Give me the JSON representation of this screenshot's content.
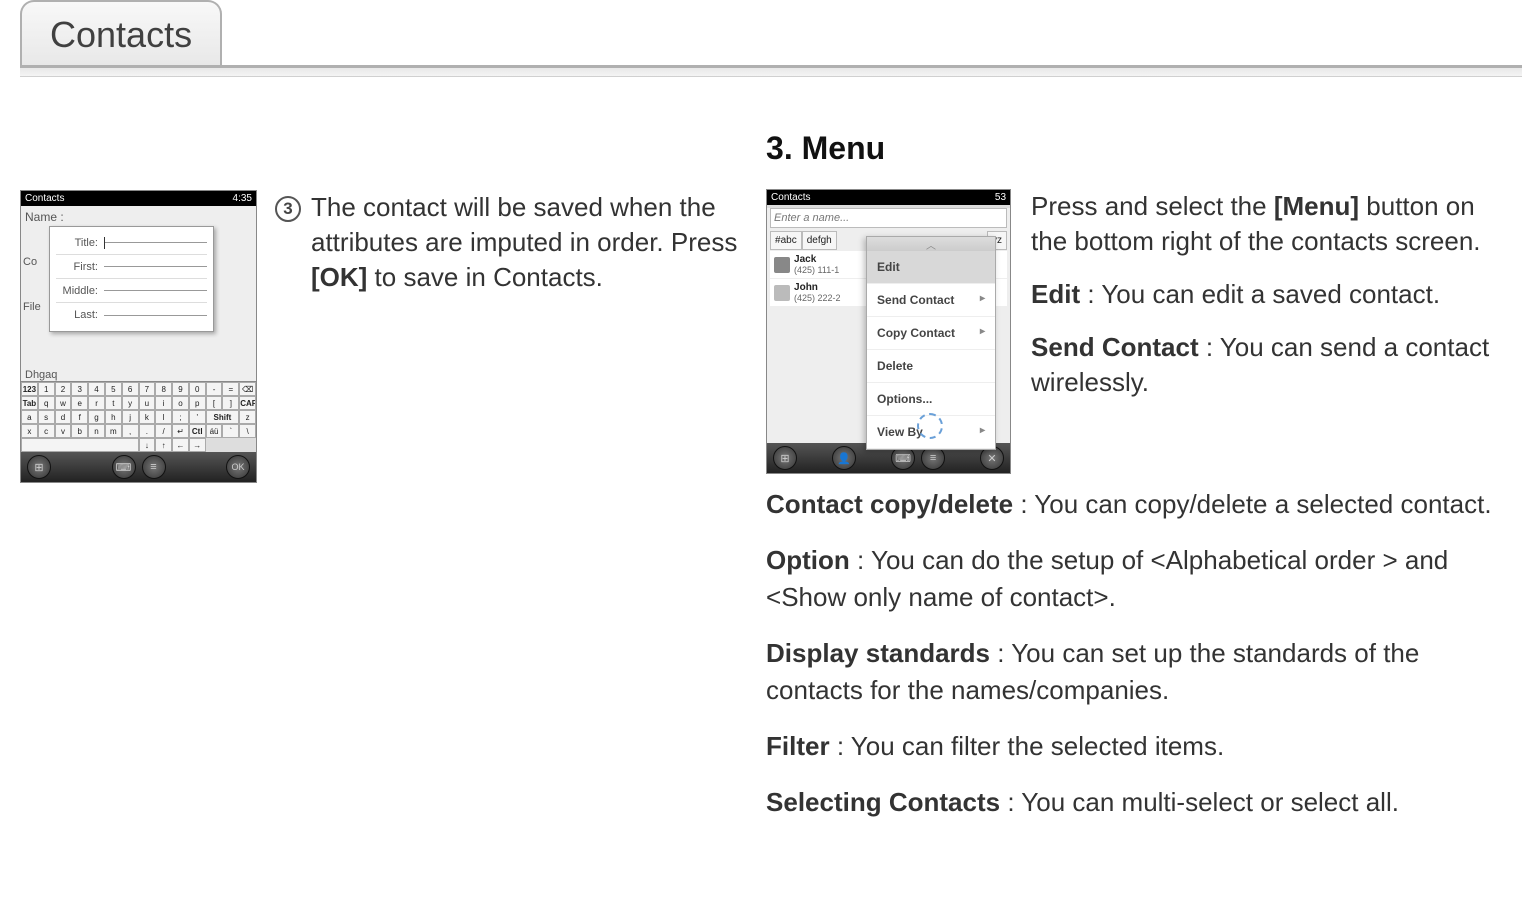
{
  "tab": {
    "title": "Contacts"
  },
  "left": {
    "step_num": "3",
    "step_text_before": "The contact will be saved when the attributes are imputed in order. Press ",
    "step_text_bold": "[OK]",
    "step_text_after": " to save in Contacts.",
    "shot": {
      "title": "Contacts",
      "clock": "4:35",
      "name_label": "Name :",
      "side_co": "Co",
      "side_file": "File",
      "dhgaq": "Dhgaq",
      "popup": {
        "title": "Title:",
        "first": "First:",
        "middle": "Middle:",
        "last": "Last:"
      },
      "kb_rows": [
        [
          "123",
          "1",
          "2",
          "3",
          "4",
          "5",
          "6",
          "7",
          "8",
          "9",
          "0",
          "-",
          "=",
          "⌫"
        ],
        [
          "Tab",
          "q",
          "w",
          "e",
          "r",
          "t",
          "y",
          "u",
          "i",
          "o",
          "p",
          "[",
          "]"
        ],
        [
          "CAP",
          "a",
          "s",
          "d",
          "f",
          "g",
          "h",
          "j",
          "k",
          "l",
          ";",
          "'"
        ],
        [
          "Shift",
          "z",
          "x",
          "c",
          "v",
          "b",
          "n",
          "m",
          ",",
          ".",
          "/",
          "↵"
        ],
        [
          "Ctl",
          "áü",
          "`",
          "\\",
          " ",
          "↓",
          "↑",
          "←",
          "→"
        ]
      ],
      "ok": "OK"
    }
  },
  "right": {
    "heading": "3. Menu",
    "shot": {
      "title": "Contacts",
      "clock": "53",
      "enter": "Enter a name...",
      "tabs": [
        "#abc",
        "defgh",
        "yz"
      ],
      "contacts": [
        {
          "name": "Jack",
          "num": "(425) 111-1"
        },
        {
          "name": "John",
          "num": "(425) 222-2"
        }
      ],
      "menu_items": [
        {
          "label": "Edit",
          "arrow": false,
          "hl": true
        },
        {
          "label": "Send Contact",
          "arrow": true
        },
        {
          "label": "Copy Contact",
          "arrow": true
        },
        {
          "label": "Delete",
          "arrow": false
        },
        {
          "label": "Options...",
          "arrow": false
        },
        {
          "label": "View By",
          "arrow": true
        }
      ]
    },
    "p1_before": "Press and select the ",
    "p1_bold": "[Menu]",
    "p1_after": " button on the bottom right of the contacts screen.",
    "p2_bold": "Edit",
    "p2_after": " : You can edit a saved contact.",
    "p3_bold": "Send Contact",
    "p3_after": " : You can send a contact wirelessly.",
    "p4_bold": "Contact copy/delete",
    "p4_after": " : You can copy/delete a selected contact.",
    "p5_bold": "Option",
    "p5_after": " : You can do the setup of <Alphabetical order > and <Show only name of contact>.",
    "p6_bold": "Display standards",
    "p6_after": " : You can set up the standards of the contacts for the names/companies.",
    "p7_bold": "Filter",
    "p7_after": " : You can filter the selected items.",
    "p8_bold": "Selecting Contacts",
    "p8_after": " : You can multi-select or select all."
  }
}
